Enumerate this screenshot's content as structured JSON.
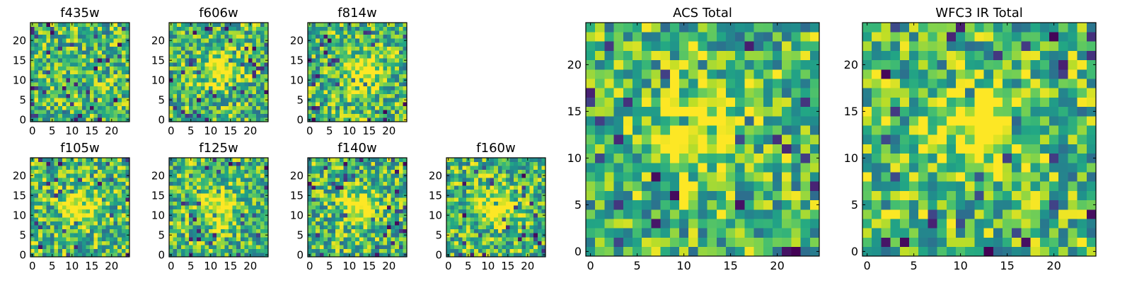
{
  "chart_data": [
    {
      "type": "heatmap",
      "title": "f435w",
      "xlabel": "",
      "ylabel": "",
      "xlim": [
        -0.5,
        24.5
      ],
      "ylim": [
        -0.5,
        24.5
      ],
      "x_ticks": [
        "0",
        "5",
        "10",
        "15",
        "20"
      ],
      "y_ticks": [
        "0",
        "5",
        "10",
        "15",
        "20"
      ],
      "colormap": "viridis",
      "grid_size": 25,
      "center": null,
      "seed": 11
    },
    {
      "type": "heatmap",
      "title": "f606w",
      "xlabel": "",
      "ylabel": "",
      "xlim": [
        -0.5,
        24.5
      ],
      "ylim": [
        -0.5,
        24.5
      ],
      "x_ticks": [
        "0",
        "5",
        "10",
        "15",
        "20"
      ],
      "y_ticks": [
        "0",
        "5",
        "10",
        "15",
        "20"
      ],
      "colormap": "viridis",
      "grid_size": 25,
      "center": [
        12,
        12
      ],
      "seed": 23
    },
    {
      "type": "heatmap",
      "title": "f814w",
      "xlabel": "",
      "ylabel": "",
      "xlim": [
        -0.5,
        24.5
      ],
      "ylim": [
        -0.5,
        24.5
      ],
      "x_ticks": [
        "0",
        "5",
        "10",
        "15",
        "20"
      ],
      "y_ticks": [
        "0",
        "5",
        "10",
        "15",
        "20"
      ],
      "colormap": "viridis",
      "grid_size": 25,
      "center": [
        13,
        12
      ],
      "seed": 37
    },
    {
      "type": "heatmap",
      "title": "f105w",
      "xlabel": "",
      "ylabel": "",
      "xlim": [
        -0.5,
        24.5
      ],
      "ylim": [
        -0.5,
        24.5
      ],
      "x_ticks": [
        "0",
        "5",
        "10",
        "15",
        "20"
      ],
      "y_ticks": [
        "0",
        "5",
        "10",
        "15",
        "20"
      ],
      "colormap": "viridis",
      "grid_size": 25,
      "center": [
        12,
        12
      ],
      "seed": 41
    },
    {
      "type": "heatmap",
      "title": "f125w",
      "xlabel": "",
      "ylabel": "",
      "xlim": [
        -0.5,
        24.5
      ],
      "ylim": [
        -0.5,
        24.5
      ],
      "x_ticks": [
        "0",
        "5",
        "10",
        "15",
        "20"
      ],
      "y_ticks": [
        "0",
        "5",
        "10",
        "15",
        "20"
      ],
      "colormap": "viridis",
      "grid_size": 25,
      "center": [
        12,
        12
      ],
      "seed": 53
    },
    {
      "type": "heatmap",
      "title": "f140w",
      "xlabel": "",
      "ylabel": "",
      "xlim": [
        -0.5,
        24.5
      ],
      "ylim": [
        -0.5,
        24.5
      ],
      "x_ticks": [
        "0",
        "5",
        "10",
        "15",
        "20"
      ],
      "y_ticks": [
        "0",
        "5",
        "10",
        "15",
        "20"
      ],
      "colormap": "viridis",
      "grid_size": 25,
      "center": [
        12,
        12
      ],
      "seed": 67
    },
    {
      "type": "heatmap",
      "title": "f160w",
      "xlabel": "",
      "ylabel": "",
      "xlim": [
        -0.5,
        24.5
      ],
      "ylim": [
        -0.5,
        24.5
      ],
      "x_ticks": [
        "0",
        "5",
        "10",
        "15",
        "20"
      ],
      "y_ticks": [
        "0",
        "5",
        "10",
        "15",
        "20"
      ],
      "colormap": "viridis",
      "grid_size": 25,
      "center": [
        12,
        12
      ],
      "seed": 79
    },
    {
      "type": "heatmap",
      "title": "ACS Total",
      "xlabel": "",
      "ylabel": "",
      "xlim": [
        -0.5,
        24.5
      ],
      "ylim": [
        -0.5,
        24.5
      ],
      "x_ticks": [
        "0",
        "5",
        "10",
        "15",
        "20"
      ],
      "y_ticks": [
        "0",
        "5",
        "10",
        "15",
        "20"
      ],
      "colormap": "viridis",
      "grid_size": 25,
      "center": [
        12,
        13
      ],
      "seed": 83
    },
    {
      "type": "heatmap",
      "title": "WFC3 IR Total",
      "xlabel": "",
      "ylabel": "",
      "xlim": [
        -0.5,
        24.5
      ],
      "ylim": [
        -0.5,
        24.5
      ],
      "x_ticks": [
        "0",
        "5",
        "10",
        "15",
        "20"
      ],
      "y_ticks": [
        "0",
        "5",
        "10",
        "15",
        "20"
      ],
      "colormap": "viridis",
      "grid_size": 25,
      "center": [
        12,
        13
      ],
      "seed": 97
    }
  ]
}
